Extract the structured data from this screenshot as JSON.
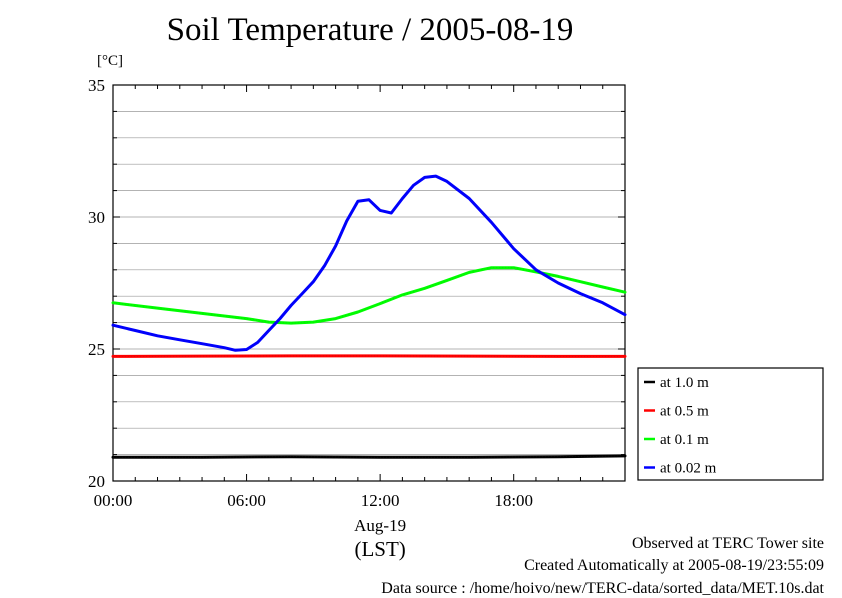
{
  "chart_data": {
    "type": "line",
    "title": "Soil Temperature / 2005-08-19",
    "ylabel": "[°C]",
    "xlabel": "(LST)",
    "date_label": "Aug-19",
    "xlim": [
      0,
      23
    ],
    "ylim": [
      20,
      35
    ],
    "yticks": [
      {
        "value": 20,
        "label": "20"
      },
      {
        "value": 25,
        "label": "25"
      },
      {
        "value": 30,
        "label": "30"
      },
      {
        "value": 35,
        "label": "35"
      }
    ],
    "xticks": [
      {
        "value": 0,
        "label": "00:00"
      },
      {
        "value": 6,
        "label": "06:00"
      },
      {
        "value": 12,
        "label": "12:00"
      },
      {
        "value": 18,
        "label": "18:00"
      }
    ],
    "grid": true,
    "legend_position": "right",
    "series": [
      {
        "name": "at 1.0 m",
        "color": "#000000",
        "x": [
          0,
          4,
          8,
          12,
          16,
          20,
          23
        ],
        "y": [
          20.9,
          20.9,
          20.92,
          20.9,
          20.9,
          20.92,
          20.95
        ]
      },
      {
        "name": "at 0.5 m",
        "color": "#ff0000",
        "x": [
          0,
          4,
          8,
          12,
          16,
          20,
          23
        ],
        "y": [
          24.72,
          24.73,
          24.74,
          24.74,
          24.73,
          24.72,
          24.72
        ]
      },
      {
        "name": "at 0.1 m",
        "color": "#00ff00",
        "x": [
          0,
          2,
          4,
          6,
          7,
          8,
          9,
          10,
          11,
          12,
          13,
          14,
          15,
          16,
          17,
          18,
          19,
          20,
          21,
          22,
          23
        ],
        "y": [
          26.75,
          26.55,
          26.35,
          26.15,
          26.02,
          25.98,
          26.02,
          26.15,
          26.4,
          26.72,
          27.05,
          27.3,
          27.6,
          27.9,
          28.08,
          28.08,
          27.92,
          27.75,
          27.55,
          27.35,
          27.15
        ]
      },
      {
        "name": "at 0.02 m",
        "color": "#0000ff",
        "x": [
          0,
          1,
          2,
          3,
          4,
          5,
          5.5,
          6,
          6.5,
          7,
          7.5,
          8,
          8.5,
          9,
          9.5,
          10,
          10.5,
          11,
          11.5,
          12,
          12.5,
          13,
          13.5,
          14,
          14.5,
          15,
          16,
          17,
          18,
          19,
          20,
          21,
          22,
          23
        ],
        "y": [
          25.9,
          25.7,
          25.5,
          25.35,
          25.2,
          25.05,
          24.95,
          24.98,
          25.25,
          25.7,
          26.15,
          26.65,
          27.1,
          27.55,
          28.15,
          28.9,
          29.85,
          30.6,
          30.65,
          30.25,
          30.15,
          30.7,
          31.2,
          31.5,
          31.55,
          31.35,
          30.7,
          29.8,
          28.8,
          28.0,
          27.5,
          27.1,
          26.75,
          26.3
        ]
      }
    ]
  },
  "footer": {
    "line1": "Observed at TERC Tower site",
    "line2": "Created Automatically at 2005-08-19/23:55:09",
    "line3": "Data source : /home/hoivo/new/TERC-data/sorted_data/MET.10s.dat"
  }
}
